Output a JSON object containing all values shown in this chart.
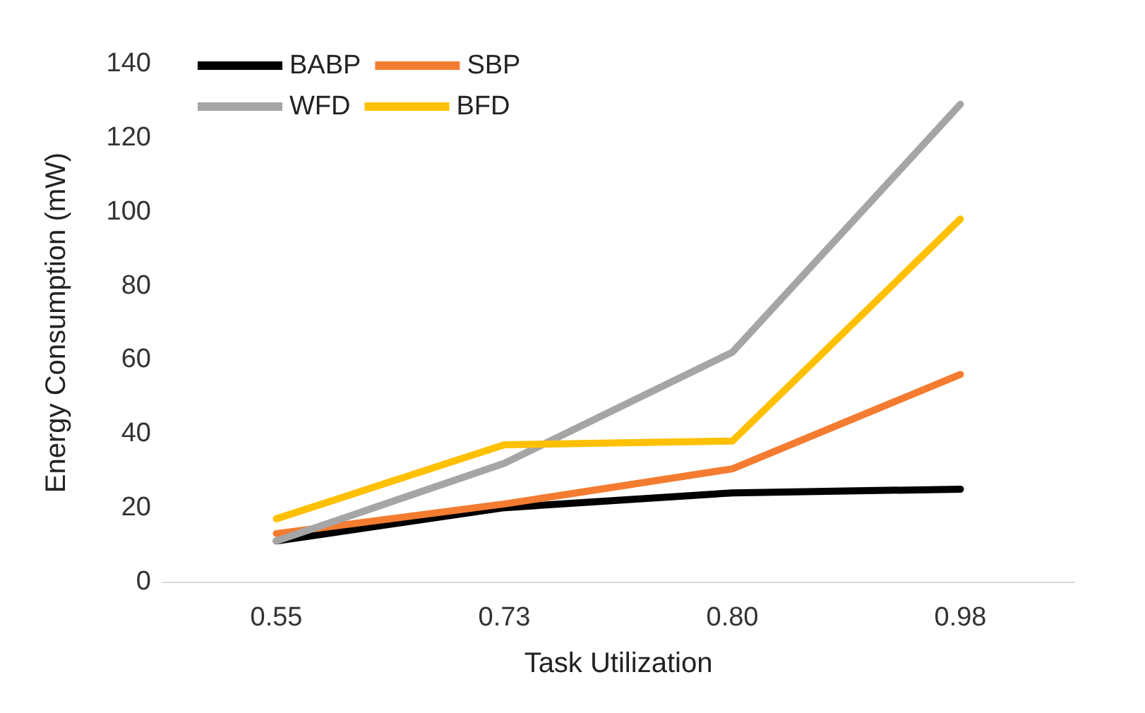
{
  "chart_data": {
    "type": "line",
    "xlabel": "Task Utilization",
    "ylabel": "Energy Consumption (mW)",
    "categories": [
      "0.55",
      "0.73",
      "0.80",
      "0.98"
    ],
    "series": [
      {
        "name": "BABP",
        "color": "#000000",
        "values": [
          11,
          20,
          24,
          25
        ]
      },
      {
        "name": "SBP",
        "color": "#f47c30",
        "values": [
          13,
          21,
          30.5,
          56
        ]
      },
      {
        "name": "WFD",
        "color": "#a5a5a5",
        "values": [
          11,
          32,
          62,
          129
        ]
      },
      {
        "name": "BFD",
        "color": "#ffc000",
        "values": [
          17,
          37,
          38,
          98
        ]
      }
    ],
    "ylim": [
      0,
      140
    ],
    "yticks": [
      0,
      20,
      40,
      60,
      80,
      100,
      120,
      140
    ],
    "grid": false,
    "legend": "top left",
    "marker": "none",
    "line_style": "solid"
  }
}
